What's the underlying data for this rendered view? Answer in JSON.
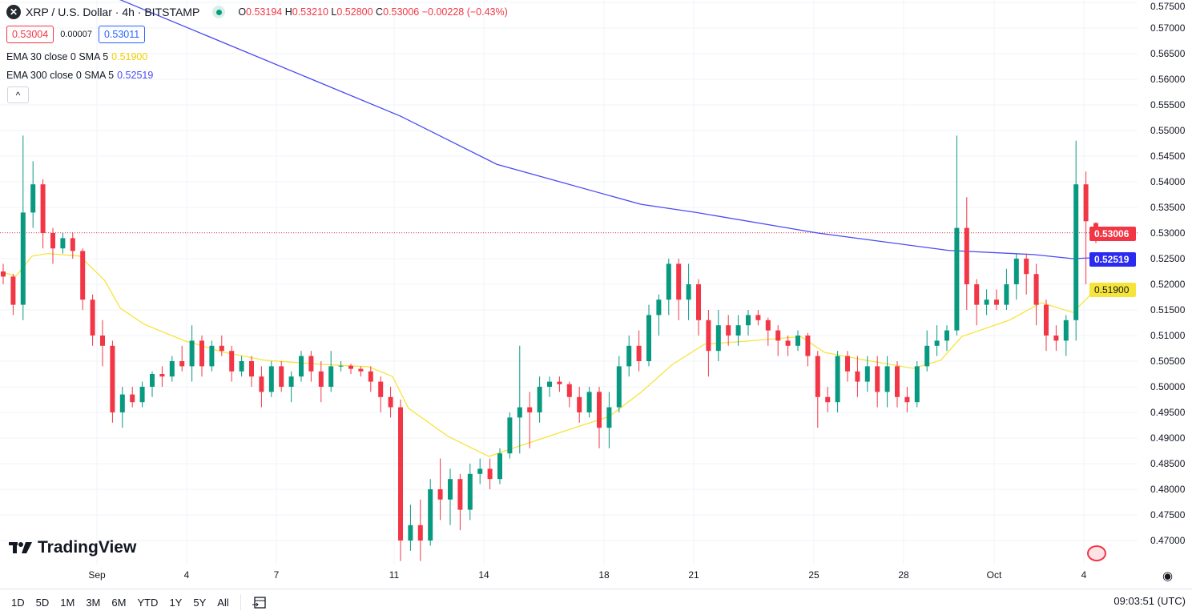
{
  "header": {
    "symbol_icon": "xrp-logo",
    "title": "XRP / U.S. Dollar · 4h · BITSTAMP",
    "status": "market-open-dot",
    "ohlc": {
      "o_label": "O",
      "o": "0.53194",
      "h_label": "H",
      "h": "0.53210",
      "l_label": "L",
      "l": "0.52800",
      "c_label": "C",
      "c": "0.53006",
      "change": "−0.00228 (−0.43%)"
    }
  },
  "quote": {
    "sell": "0.53004",
    "spread": "0.00007",
    "buy": "0.53011"
  },
  "indicators": [
    {
      "label": "EMA 30 close 0 SMA 5",
      "value": "0.51900",
      "color": "#f7e43a"
    },
    {
      "label": "EMA 300 close 0 SMA 5",
      "value": "0.52519",
      "color": "#4a4af4"
    }
  ],
  "collapse_label": "^",
  "logo_text": "TradingView",
  "toolbar": {
    "ranges": [
      "1D",
      "5D",
      "1M",
      "3M",
      "6M",
      "YTD",
      "1Y",
      "5Y",
      "All"
    ],
    "goto_icon": "calendar-goto-icon"
  },
  "clock": "09:03:51 (UTC)",
  "settings_icon": "eye-icon",
  "price_labels": {
    "last": "0.53006",
    "ema300": "0.52519",
    "ema30": "0.51900"
  },
  "colors": {
    "up": "#089981",
    "down": "#f23645",
    "ema30": "#f7e43a",
    "ema300": "#4a4af4"
  },
  "chart_data": {
    "type": "candlestick",
    "yaxis": {
      "ticks": [
        "0.57500",
        "0.57000",
        "0.56500",
        "0.56000",
        "0.55500",
        "0.55000",
        "0.54500",
        "0.54000",
        "0.53500",
        "0.53000",
        "0.52500",
        "0.52000",
        "0.51500",
        "0.51000",
        "0.50500",
        "0.50000",
        "0.49500",
        "0.49000",
        "0.48500",
        "0.48000",
        "0.47500",
        "0.47000"
      ],
      "range": [
        0.4655,
        0.5755
      ]
    },
    "xaxis": {
      "ticks": [
        "Sep",
        "4",
        "7",
        "11",
        "14",
        "18",
        "21",
        "25",
        "28",
        "Oct",
        "4"
      ]
    },
    "grid": true,
    "candles": [
      [
        0.5225,
        0.524,
        0.52,
        0.5215
      ],
      [
        0.5215,
        0.522,
        0.514,
        0.516
      ],
      [
        0.516,
        0.549,
        0.513,
        0.534
      ],
      [
        0.534,
        0.544,
        0.531,
        0.5395
      ],
      [
        0.5395,
        0.5405,
        0.527,
        0.53
      ],
      [
        0.53,
        0.531,
        0.524,
        0.527
      ],
      [
        0.527,
        0.53,
        0.526,
        0.529
      ],
      [
        0.529,
        0.53,
        0.525,
        0.5265
      ],
      [
        0.5265,
        0.527,
        0.515,
        0.517
      ],
      [
        0.517,
        0.518,
        0.508,
        0.51
      ],
      [
        0.51,
        0.513,
        0.504,
        0.508
      ],
      [
        0.508,
        0.509,
        0.493,
        0.495
      ],
      [
        0.495,
        0.5,
        0.492,
        0.4985
      ],
      [
        0.4985,
        0.5,
        0.496,
        0.497
      ],
      [
        0.497,
        0.501,
        0.496,
        0.5
      ],
      [
        0.5,
        0.503,
        0.498,
        0.5025
      ],
      [
        0.5025,
        0.504,
        0.5,
        0.502
      ],
      [
        0.502,
        0.506,
        0.501,
        0.505
      ],
      [
        0.505,
        0.508,
        0.503,
        0.504
      ],
      [
        0.504,
        0.512,
        0.501,
        0.509
      ],
      [
        0.509,
        0.51,
        0.502,
        0.504
      ],
      [
        0.504,
        0.509,
        0.503,
        0.508
      ],
      [
        0.508,
        0.51,
        0.506,
        0.507
      ],
      [
        0.507,
        0.508,
        0.501,
        0.503
      ],
      [
        0.503,
        0.506,
        0.502,
        0.505
      ],
      [
        0.505,
        0.506,
        0.5,
        0.502
      ],
      [
        0.502,
        0.504,
        0.496,
        0.499
      ],
      [
        0.499,
        0.505,
        0.498,
        0.504
      ],
      [
        0.504,
        0.505,
        0.499,
        0.5
      ],
      [
        0.5,
        0.503,
        0.497,
        0.502
      ],
      [
        0.502,
        0.507,
        0.501,
        0.506
      ],
      [
        0.506,
        0.507,
        0.501,
        0.503
      ],
      [
        0.503,
        0.505,
        0.497,
        0.5
      ],
      [
        0.5,
        0.507,
        0.499,
        0.504
      ],
      [
        0.504,
        0.505,
        0.503,
        0.5041
      ],
      [
        0.5041,
        0.5045,
        0.5025,
        0.5035
      ],
      [
        0.5035,
        0.504,
        0.502,
        0.503
      ],
      [
        0.503,
        0.504,
        0.499,
        0.501
      ],
      [
        0.501,
        0.502,
        0.495,
        0.498
      ],
      [
        0.498,
        0.5,
        0.494,
        0.496
      ],
      [
        0.496,
        0.4975,
        0.466,
        0.47
      ],
      [
        0.47,
        0.477,
        0.468,
        0.473
      ],
      [
        0.473,
        0.478,
        0.466,
        0.47
      ],
      [
        0.47,
        0.482,
        0.469,
        0.48
      ],
      [
        0.48,
        0.486,
        0.474,
        0.478
      ],
      [
        0.478,
        0.484,
        0.473,
        0.482
      ],
      [
        0.482,
        0.483,
        0.472,
        0.476
      ],
      [
        0.476,
        0.485,
        0.474,
        0.483
      ],
      [
        0.483,
        0.486,
        0.481,
        0.484
      ],
      [
        0.484,
        0.486,
        0.48,
        0.482
      ],
      [
        0.482,
        0.488,
        0.481,
        0.487
      ],
      [
        0.487,
        0.495,
        0.486,
        0.494
      ],
      [
        0.494,
        0.508,
        0.487,
        0.496
      ],
      [
        0.496,
        0.499,
        0.488,
        0.495
      ],
      [
        0.495,
        0.502,
        0.493,
        0.5
      ],
      [
        0.5,
        0.502,
        0.498,
        0.501
      ],
      [
        0.501,
        0.502,
        0.499,
        0.5005
      ],
      [
        0.5005,
        0.501,
        0.496,
        0.498
      ],
      [
        0.498,
        0.5,
        0.493,
        0.495
      ],
      [
        0.495,
        0.5,
        0.494,
        0.499
      ],
      [
        0.499,
        0.5,
        0.488,
        0.492
      ],
      [
        0.492,
        0.499,
        0.488,
        0.496
      ],
      [
        0.496,
        0.506,
        0.495,
        0.504
      ],
      [
        0.504,
        0.51,
        0.502,
        0.508
      ],
      [
        0.508,
        0.511,
        0.503,
        0.505
      ],
      [
        0.505,
        0.516,
        0.504,
        0.514
      ],
      [
        0.514,
        0.518,
        0.51,
        0.517
      ],
      [
        0.517,
        0.525,
        0.514,
        0.524
      ],
      [
        0.524,
        0.525,
        0.513,
        0.517
      ],
      [
        0.517,
        0.524,
        0.513,
        0.52
      ],
      [
        0.52,
        0.521,
        0.51,
        0.513
      ],
      [
        0.513,
        0.515,
        0.502,
        0.507
      ],
      [
        0.507,
        0.515,
        0.505,
        0.512
      ],
      [
        0.512,
        0.514,
        0.508,
        0.51
      ],
      [
        0.51,
        0.514,
        0.508,
        0.512
      ],
      [
        0.512,
        0.515,
        0.51,
        0.514
      ],
      [
        0.514,
        0.515,
        0.512,
        0.513
      ],
      [
        0.513,
        0.5135,
        0.508,
        0.511
      ],
      [
        0.511,
        0.512,
        0.506,
        0.509
      ],
      [
        0.509,
        0.51,
        0.506,
        0.508
      ],
      [
        0.508,
        0.511,
        0.507,
        0.51
      ],
      [
        0.51,
        0.5105,
        0.504,
        0.506
      ],
      [
        0.506,
        0.507,
        0.492,
        0.498
      ],
      [
        0.498,
        0.5,
        0.495,
        0.497
      ],
      [
        0.497,
        0.507,
        0.495,
        0.506
      ],
      [
        0.506,
        0.507,
        0.501,
        0.503
      ],
      [
        0.503,
        0.506,
        0.498,
        0.501
      ],
      [
        0.501,
        0.506,
        0.499,
        0.504
      ],
      [
        0.504,
        0.506,
        0.496,
        0.499
      ],
      [
        0.499,
        0.506,
        0.496,
        0.504
      ],
      [
        0.504,
        0.505,
        0.496,
        0.498
      ],
      [
        0.498,
        0.5,
        0.495,
        0.497
      ],
      [
        0.497,
        0.505,
        0.496,
        0.504
      ],
      [
        0.504,
        0.511,
        0.503,
        0.508
      ],
      [
        0.508,
        0.512,
        0.506,
        0.509
      ],
      [
        0.509,
        0.512,
        0.507,
        0.511
      ],
      [
        0.511,
        0.549,
        0.51,
        0.531
      ],
      [
        0.531,
        0.537,
        0.515,
        0.52
      ],
      [
        0.52,
        0.521,
        0.512,
        0.516
      ],
      [
        0.516,
        0.519,
        0.514,
        0.517
      ],
      [
        0.517,
        0.519,
        0.515,
        0.516
      ],
      [
        0.516,
        0.523,
        0.515,
        0.52
      ],
      [
        0.52,
        0.526,
        0.517,
        0.525
      ],
      [
        0.525,
        0.526,
        0.518,
        0.522
      ],
      [
        0.522,
        0.524,
        0.512,
        0.516
      ],
      [
        0.516,
        0.517,
        0.507,
        0.51
      ],
      [
        0.51,
        0.512,
        0.507,
        0.509
      ],
      [
        0.509,
        0.514,
        0.506,
        0.513
      ],
      [
        0.513,
        0.548,
        0.509,
        0.5395
      ],
      [
        0.5395,
        0.542,
        0.52,
        0.5323
      ],
      [
        0.53194,
        0.5321,
        0.528,
        0.53006
      ]
    ],
    "ema30": [
      [
        0,
        0.5223
      ],
      [
        1.3,
        0.5216
      ],
      [
        2.9,
        0.5255
      ],
      [
        4.5,
        0.526
      ],
      [
        7.7,
        0.5255
      ],
      [
        10.2,
        0.5208
      ],
      [
        11.8,
        0.5153
      ],
      [
        14.2,
        0.5122
      ],
      [
        18.2,
        0.509
      ],
      [
        22.3,
        0.5067
      ],
      [
        26.3,
        0.5052
      ],
      [
        31.9,
        0.5044
      ],
      [
        36.8,
        0.5039
      ],
      [
        39.2,
        0.502
      ],
      [
        40.8,
        0.4958
      ],
      [
        44.8,
        0.4903
      ],
      [
        48.9,
        0.4864
      ],
      [
        51.3,
        0.488
      ],
      [
        56.1,
        0.4911
      ],
      [
        61,
        0.4942
      ],
      [
        64.2,
        0.4989
      ],
      [
        67.4,
        0.5044
      ],
      [
        70.6,
        0.5083
      ],
      [
        75.5,
        0.509
      ],
      [
        80.3,
        0.5098
      ],
      [
        82.7,
        0.5067
      ],
      [
        86.8,
        0.5052
      ],
      [
        91.6,
        0.5036
      ],
      [
        94.4,
        0.5052
      ],
      [
        96.5,
        0.5098
      ],
      [
        101.3,
        0.513
      ],
      [
        104.5,
        0.5164
      ],
      [
        107.7,
        0.5145
      ],
      [
        110,
        0.519
      ]
    ],
    "ema300": [
      [
        0,
        0.5845
      ],
      [
        11.8,
        0.5755
      ],
      [
        40,
        0.5528
      ],
      [
        49.7,
        0.5434
      ],
      [
        64.2,
        0.5356
      ],
      [
        69.8,
        0.534
      ],
      [
        82,
        0.53
      ],
      [
        95.2,
        0.5266
      ],
      [
        103.7,
        0.5258
      ],
      [
        107.7,
        0.525
      ],
      [
        110,
        0.5252
      ]
    ]
  }
}
